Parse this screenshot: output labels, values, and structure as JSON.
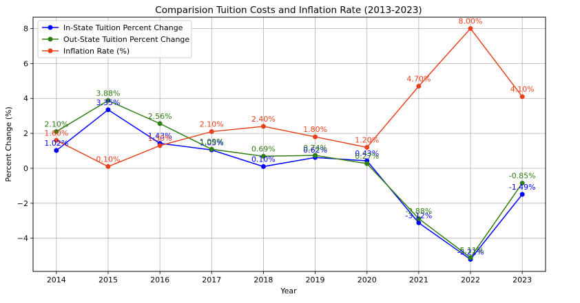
{
  "chart_data": {
    "type": "line",
    "title": "Comparision Tuition Costs and Inflation Rate (2013-2023)",
    "xlabel": "Year",
    "ylabel": "Percent Change (%)",
    "x": [
      2014,
      2015,
      2016,
      2017,
      2018,
      2019,
      2020,
      2021,
      2022,
      2023
    ],
    "xlim": [
      2013.55,
      2023.45
    ],
    "ylim": [
      -5.9,
      8.65
    ],
    "yticks": [
      -4,
      -2,
      0,
      2,
      4,
      6,
      8
    ],
    "grid": true,
    "legend_position": "top-left",
    "series": [
      {
        "name": "In-State Tuition Percent Change",
        "color": "#0000ff",
        "values": [
          1.02,
          3.35,
          1.43,
          1.05,
          0.1,
          0.62,
          0.43,
          -3.12,
          -5.21,
          -1.49
        ],
        "labels": [
          "1.02%",
          "3.35%",
          "1.43%",
          "1.05%",
          "0.10%",
          "0.62%",
          "0.43%",
          "-3.12%",
          "-5.21%",
          "-1.49%"
        ]
      },
      {
        "name": "Out-State Tuition Percent Change",
        "color": "#2e7d12",
        "values": [
          2.1,
          3.88,
          2.56,
          1.09,
          0.69,
          0.74,
          0.27,
          -2.88,
          -5.11,
          -0.85
        ],
        "labels": [
          "2.10%",
          "3.88%",
          "2.56%",
          "1.09%",
          "0.69%",
          "0.74%",
          "0.27%",
          "-2.88%",
          "-5.11%",
          "-0.85%"
        ]
      },
      {
        "name": "Inflation Rate (%)",
        "color": "#e8401c",
        "values": [
          1.6,
          0.1,
          1.3,
          2.1,
          2.4,
          1.8,
          1.2,
          4.7,
          8.0,
          4.1
        ],
        "labels": [
          "1.60%",
          "0.10%",
          "1.30%",
          "2.10%",
          "2.40%",
          "1.80%",
          "1.20%",
          "4.70%",
          "8.00%",
          "4.10%"
        ]
      }
    ]
  }
}
